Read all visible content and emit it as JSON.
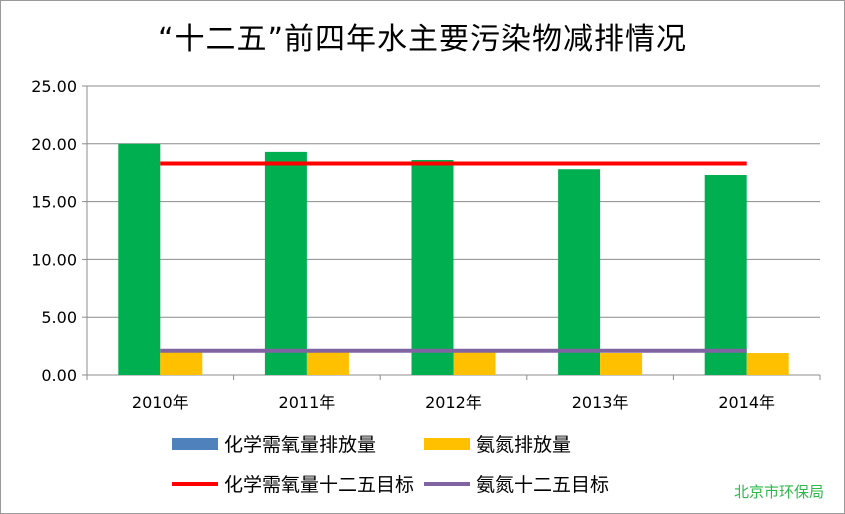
{
  "chart_data": {
    "type": "bar",
    "title": "“十二五”前四年水主要污染物减排情况",
    "categories": [
      "2010年",
      "2011年",
      "2012年",
      "2013年",
      "2014年"
    ],
    "series": [
      {
        "name": "化学需氧量排放量",
        "kind": "bar",
        "color": "#00b050",
        "legend_color": "#4f81bd",
        "values": [
          20.0,
          19.3,
          18.6,
          17.8,
          17.3
        ]
      },
      {
        "name": "氨氮排放量",
        "kind": "bar",
        "color": "#ffc000",
        "values": [
          2.0,
          2.0,
          2.0,
          1.9,
          1.9
        ]
      },
      {
        "name": "化学需氧量十二五目标",
        "kind": "line",
        "color": "#ff0000",
        "values": [
          18.3,
          18.3,
          18.3,
          18.3,
          18.3
        ]
      },
      {
        "name": "氨氮十二五目标",
        "kind": "line",
        "color": "#8064a2",
        "values": [
          2.1,
          2.1,
          2.1,
          2.1,
          2.1
        ]
      }
    ],
    "yticks": [
      "0.00",
      "5.00",
      "10.00",
      "15.00",
      "20.00",
      "25.00"
    ],
    "ylim": [
      0,
      25
    ],
    "grid": true,
    "legend_position": "bottom"
  },
  "footer": {
    "source": "北京市环保局"
  }
}
